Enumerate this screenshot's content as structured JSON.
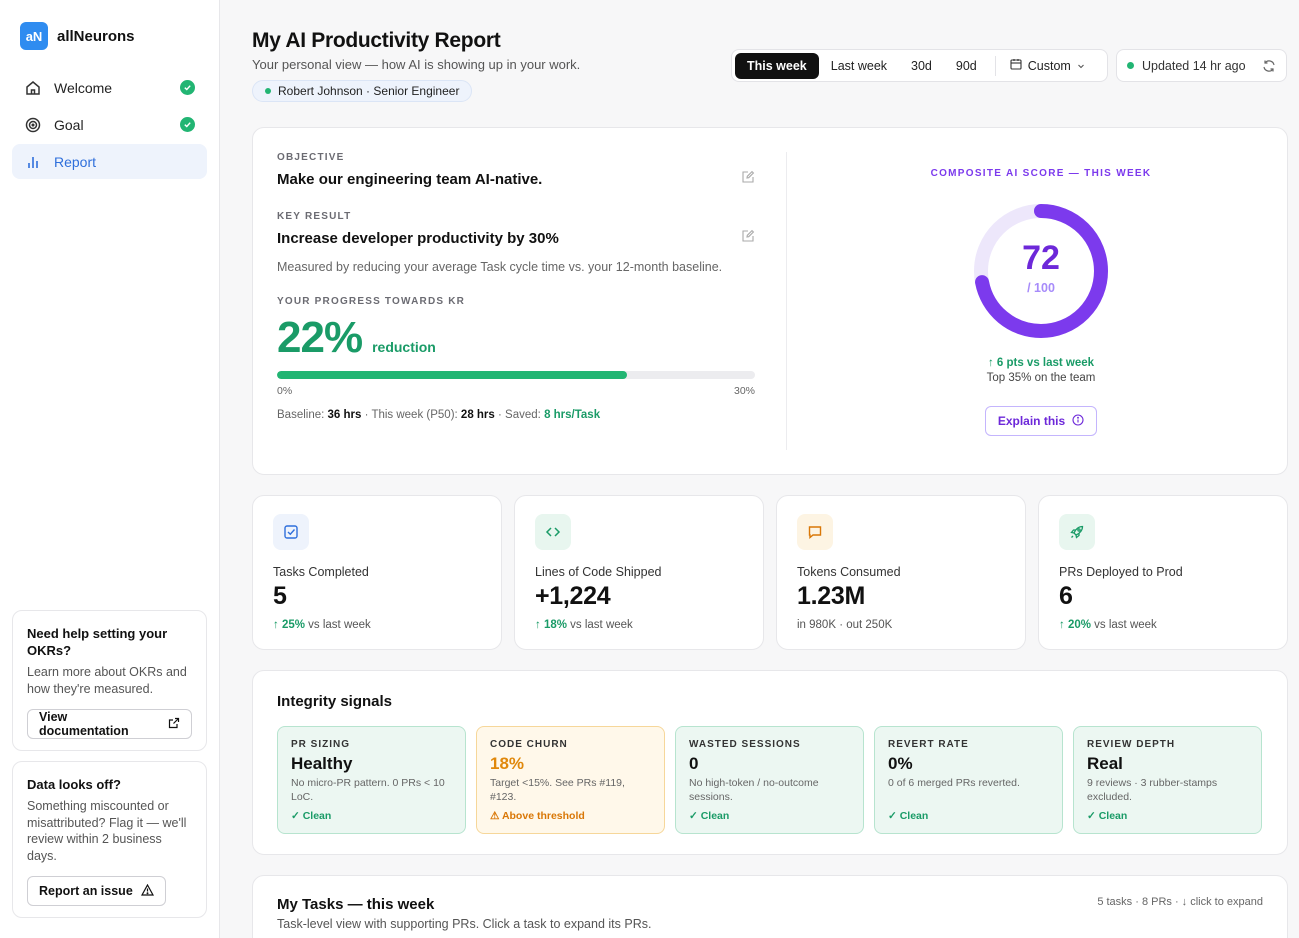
{
  "brand": {
    "logo": "aN",
    "name": "allNeurons"
  },
  "nav": [
    {
      "label": "Welcome",
      "icon": "home-icon",
      "done": true
    },
    {
      "label": "Goal",
      "icon": "target-icon",
      "done": true
    },
    {
      "label": "Report",
      "icon": "bar-chart-icon",
      "active": true
    }
  ],
  "help": {
    "title": "Need help setting your OKRs?",
    "body": "Learn more about OKRs and how they're measured.",
    "button": "View documentation"
  },
  "flag": {
    "title": "Data looks off?",
    "body": "Something miscounted or misattributed? Flag it — we'll review within 2 business days.",
    "button": "Report an issue"
  },
  "header": {
    "title": "My AI Productivity Report",
    "subtitle": "Your personal view — how AI is showing up in your work.",
    "user": "Robert Johnson · Senior Engineer",
    "ranges": [
      "This week",
      "Last week",
      "30d",
      "90d"
    ],
    "active_range": "This week",
    "custom": "Custom",
    "updated": "Updated 14 hr ago"
  },
  "okr": {
    "objective_label": "OBJECTIVE",
    "objective": "Make our engineering team AI-native.",
    "kr_label": "KEY RESULT",
    "kr": "Increase developer productivity by 30%",
    "kr_desc": "Measured by reducing your average Task cycle time vs. your 12-month baseline.",
    "progress_label": "YOUR PROGRESS TOWARDS KR",
    "progress_value": "22%",
    "progress_unit": "reduction",
    "progress_fraction": 0.733,
    "bar_min": "0%",
    "bar_max": "30%",
    "baseline_label": "Baseline:",
    "baseline": "36 hrs",
    "thisweek_label": "This week (P50):",
    "thisweek": "28 hrs",
    "saved_label": "Saved:",
    "saved": "8 hrs/Task"
  },
  "score": {
    "title": "COMPOSITE AI SCORE — THIS WEEK",
    "value": "72",
    "max": "/ 100",
    "fraction": 0.72,
    "delta": "↑ 6 pts vs last week",
    "rank": "Top 35% on the team",
    "button": "Explain this",
    "color": "#7c3aed"
  },
  "metrics": [
    {
      "icon": "checkbox-icon",
      "label": "Tasks Completed",
      "value": "5",
      "delta_strong": "↑ 25%",
      "delta_rest": " vs last week",
      "bg": "#eef3fc",
      "fg": "#2f6fdb"
    },
    {
      "icon": "code-icon",
      "label": "Lines of Code Shipped",
      "value": "+1,224",
      "delta_strong": "↑ 18%",
      "delta_rest": " vs last week",
      "bg": "#e8f6ef",
      "fg": "#1a9b67"
    },
    {
      "icon": "chat-icon",
      "label": "Tokens Consumed",
      "value": "1.23M",
      "delta_strong": "",
      "delta_rest": "in 980K · out 250K",
      "bg": "#fdf4e3",
      "fg": "#d97706"
    },
    {
      "icon": "rocket-icon",
      "label": "PRs Deployed to Prod",
      "value": "6",
      "delta_strong": "↑ 20%",
      "delta_rest": " vs last week",
      "bg": "#e8f6ef",
      "fg": "#1a9b67"
    }
  ],
  "integrity": {
    "title": "Integrity signals",
    "signals": [
      {
        "label": "PR SIZING",
        "value": "Healthy",
        "desc": "No micro-PR pattern. 0 PRs < 10 LoC.",
        "status": "✓ Clean",
        "warn": false
      },
      {
        "label": "CODE CHURN",
        "value": "18%",
        "desc": "Target <15%. See PRs #119, #123.",
        "status": "⚠ Above threshold",
        "warn": true
      },
      {
        "label": "WASTED SESSIONS",
        "value": "0",
        "desc": "No high-token / no-outcome sessions.",
        "status": "✓ Clean",
        "warn": false
      },
      {
        "label": "REVERT RATE",
        "value": "0%",
        "desc": "0 of 6 merged PRs reverted.",
        "status": "✓ Clean",
        "warn": false
      },
      {
        "label": "REVIEW DEPTH",
        "value": "Real",
        "desc": "9 reviews · 3 rubber-stamps excluded.",
        "status": "✓ Clean",
        "warn": false
      }
    ]
  },
  "tasks": {
    "title": "My Tasks — this week",
    "subtitle": "Task-level view with supporting PRs. Click a task to expand its PRs.",
    "meta": "5 tasks · 8 PRs · ↓ click to expand"
  }
}
